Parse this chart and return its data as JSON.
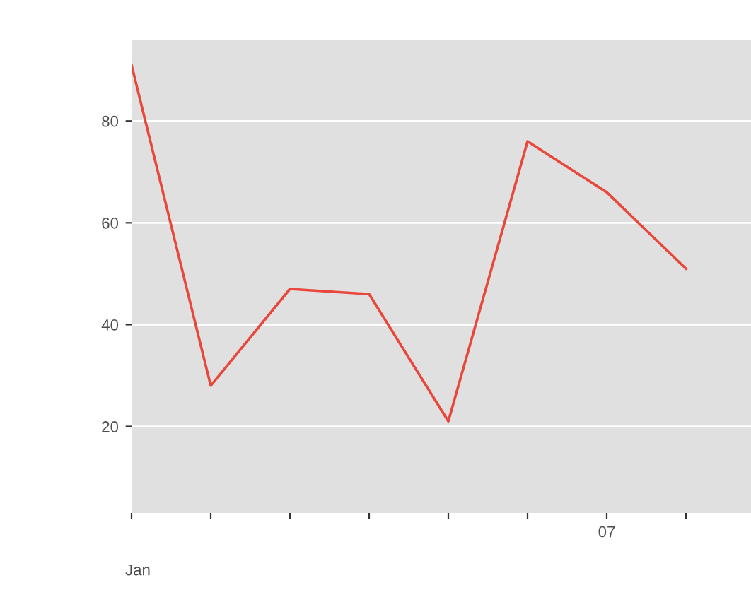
{
  "chart_data": {
    "type": "line",
    "categories": [
      null,
      null,
      null,
      null,
      null,
      null,
      "07",
      null,
      null
    ],
    "series": [
      {
        "color": "#e8483b",
        "values": [
          91,
          28,
          47,
          46,
          21,
          76,
          66,
          51,
          null
        ]
      }
    ],
    "xlabel": "Jan",
    "ylim": [
      3,
      96
    ],
    "yticks": [
      20,
      40,
      60,
      80
    ],
    "grid": "y",
    "marker": "none",
    "line_style": "solid"
  }
}
